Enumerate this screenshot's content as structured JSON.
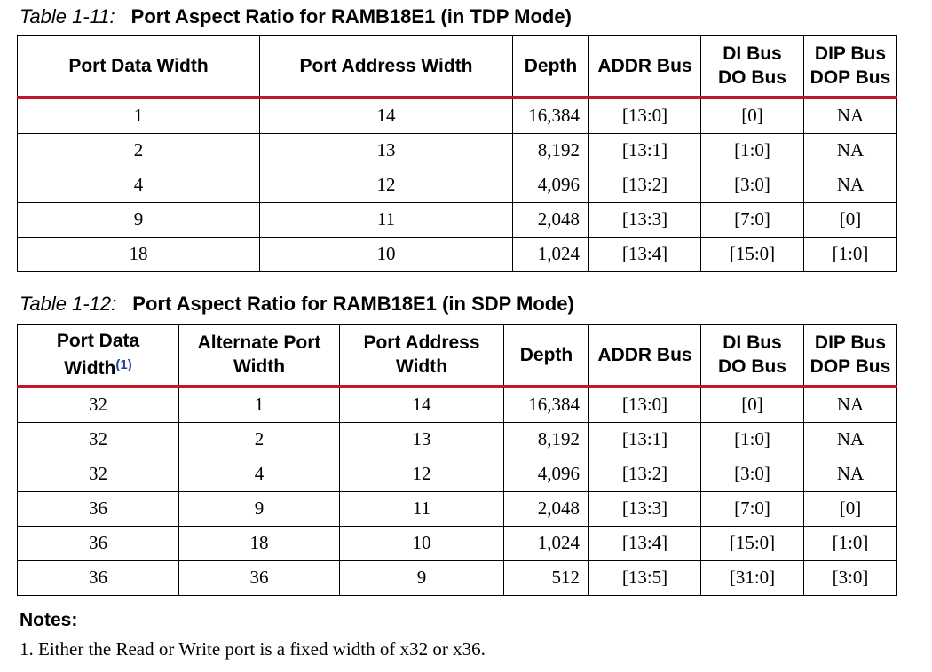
{
  "table1": {
    "caption_num": "Table 1-11:",
    "caption_title": "Port Aspect Ratio for RAMB18E1 (in TDP Mode)",
    "headers": {
      "port_data_width": "Port Data Width",
      "port_address_width": "Port Address Width",
      "depth": "Depth",
      "addr_bus": "ADDR Bus",
      "di_bus": "DI Bus",
      "do_bus": "DO Bus",
      "dip_bus": "DIP Bus",
      "dop_bus": "DOP Bus"
    },
    "rows": [
      [
        "1",
        "14",
        "16,384",
        "[13:0]",
        "[0]",
        "NA"
      ],
      [
        "2",
        "13",
        "8,192",
        "[13:1]",
        "[1:0]",
        "NA"
      ],
      [
        "4",
        "12",
        "4,096",
        "[13:2]",
        "[3:0]",
        "NA"
      ],
      [
        "9",
        "11",
        "2,048",
        "[13:3]",
        "[7:0]",
        "[0]"
      ],
      [
        "18",
        "10",
        "1,024",
        "[13:4]",
        "[15:0]",
        "[1:0]"
      ]
    ]
  },
  "table2": {
    "caption_num": "Table 1-12:",
    "caption_title": "Port Aspect Ratio for RAMB18E1 (in SDP Mode)",
    "headers": {
      "port_data": "Port Data",
      "width": "Width",
      "footnote_ref": "(1)",
      "alternate_port": "Alternate Port",
      "alternate_width": "Width",
      "port_address": "Port Address",
      "address_width": "Width",
      "depth": "Depth",
      "addr_bus": "ADDR Bus",
      "di_bus": "DI Bus",
      "do_bus": "DO Bus",
      "dip_bus": "DIP Bus",
      "dop_bus": "DOP Bus"
    },
    "rows": [
      [
        "32",
        "1",
        "14",
        "16,384",
        "[13:0]",
        "[0]",
        "NA"
      ],
      [
        "32",
        "2",
        "13",
        "8,192",
        "[13:1]",
        "[1:0]",
        "NA"
      ],
      [
        "32",
        "4",
        "12",
        "4,096",
        "[13:2]",
        "[3:0]",
        "NA"
      ],
      [
        "36",
        "9",
        "11",
        "2,048",
        "[13:3]",
        "[7:0]",
        "[0]"
      ],
      [
        "36",
        "18",
        "10",
        "1,024",
        "[13:4]",
        "[15:0]",
        "[1:0]"
      ],
      [
        "36",
        "36",
        "9",
        "512",
        "[13:5]",
        "[31:0]",
        "[3:0]"
      ]
    ]
  },
  "notes": {
    "heading": "Notes:",
    "items": [
      "1.  Either the Read or Write port is a fixed width of x32 or x36."
    ]
  },
  "colors": {
    "header_rule": "#c0172c",
    "footnote_link": "#1f3fae"
  }
}
